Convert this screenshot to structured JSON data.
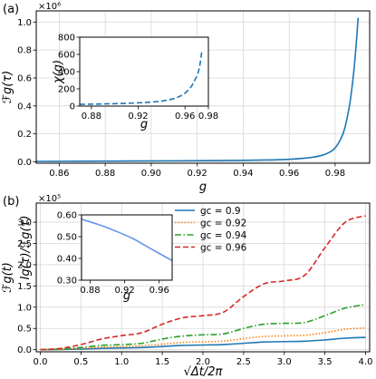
{
  "chart_data": [
    {
      "type": "line",
      "panel_label": "(a)",
      "xlabel": "g",
      "ylabel": "ℱg(τ)",
      "xlim": [
        0.85,
        0.995
      ],
      "ylim": [
        -10000,
        1080000
      ],
      "y_multiplier": "×10⁶",
      "xticks": [
        0.86,
        0.88,
        0.9,
        0.92,
        0.94,
        0.96,
        0.98
      ],
      "xtick_labels": [
        "0.86",
        "0.88",
        "0.90",
        "0.92",
        "0.94",
        "0.96",
        "0.98"
      ],
      "yticks": [
        0,
        200000,
        400000,
        600000,
        800000,
        1000000
      ],
      "ytick_labels": [
        "0.0",
        "0.2",
        "0.4",
        "0.6",
        "0.8",
        "1.0"
      ],
      "grid": true,
      "series": [
        {
          "color": "#1f77b4",
          "style": "solid",
          "x": [
            0.85,
            0.88,
            0.91,
            0.93,
            0.95,
            0.96,
            0.97,
            0.975,
            0.978,
            0.98,
            0.982,
            0.984,
            0.986,
            0.987,
            0.988,
            0.989,
            0.99
          ],
          "y": [
            3000,
            5000,
            7000,
            9000,
            13000,
            18000,
            32000,
            50000,
            72000,
            100000,
            150000,
            230000,
            380000,
            490000,
            630000,
            810000,
            1030000
          ]
        }
      ]
    },
    {
      "type": "line",
      "inset_of": "(a)",
      "xlabel": "g",
      "ylabel": "χ(g)",
      "xlim": [
        0.87,
        0.98
      ],
      "ylim": [
        0,
        800
      ],
      "xticks": [
        0.88,
        0.92,
        0.96,
        0.98
      ],
      "xtick_labels": [
        "0.88",
        "0.92",
        "0.96",
        "0.98"
      ],
      "yticks": [
        0,
        200,
        400,
        600,
        800
      ],
      "ytick_labels": [
        "0",
        "200",
        "400",
        "600",
        "800"
      ],
      "grid": false,
      "series": [
        {
          "color": "#1f77b4",
          "style": "dashed",
          "x": [
            0.87,
            0.89,
            0.91,
            0.93,
            0.94,
            0.95,
            0.955,
            0.96,
            0.965,
            0.968,
            0.971,
            0.973,
            0.9745
          ],
          "y": [
            20,
            25,
            32,
            45,
            58,
            85,
            110,
            150,
            220,
            290,
            380,
            500,
            650
          ]
        }
      ]
    },
    {
      "type": "line",
      "panel_label": "(b)",
      "xlabel": "√Δt/2π",
      "ylabel": "ℱg(t)",
      "xlim": [
        -0.05,
        4.05
      ],
      "ylim": [
        -5000,
        345000
      ],
      "y_multiplier": "×10⁵",
      "xticks": [
        0.0,
        0.5,
        1.0,
        1.5,
        2.0,
        2.5,
        3.0,
        3.5,
        4.0
      ],
      "xtick_labels": [
        "0.0",
        "0.5",
        "1.0",
        "1.5",
        "2.0",
        "2.5",
        "3.0",
        "3.5",
        "4.0"
      ],
      "yticks": [
        0,
        50000,
        100000,
        150000,
        200000,
        250000,
        300000
      ],
      "ytick_labels": [
        "0.0",
        "0.5",
        "1.0",
        "1.5",
        "2.0",
        "2.5",
        "3.0"
      ],
      "grid": true,
      "legend_position": "top-right",
      "series": [
        {
          "name": "g_c = 0.9",
          "legend_label": "gc = 0.9",
          "color": "#1f77b4",
          "style": "solid",
          "x": [
            0,
            0.25,
            0.5,
            0.75,
            1.0,
            1.25,
            1.5,
            1.75,
            2.0,
            2.25,
            2.5,
            2.75,
            3.0,
            3.25,
            3.5,
            3.75,
            4.0
          ],
          "y": [
            0,
            500,
            1500,
            3000,
            4000,
            5000,
            7500,
            10000,
            11000,
            12000,
            15000,
            18000,
            19000,
            20000,
            23000,
            27000,
            29000
          ]
        },
        {
          "name": "g_c = 0.92",
          "legend_label": "gc = 0.92",
          "color": "#ff7f0e",
          "style": "dotted",
          "x": [
            0,
            0.25,
            0.5,
            0.75,
            1.0,
            1.25,
            1.5,
            1.75,
            2.0,
            2.25,
            2.5,
            2.75,
            3.0,
            3.25,
            3.5,
            3.75,
            4.0
          ],
          "y": [
            0,
            800,
            3000,
            6000,
            7000,
            9000,
            13000,
            17000,
            18500,
            20000,
            26000,
            31000,
            32500,
            34000,
            40000,
            48000,
            51000
          ]
        },
        {
          "name": "g_c = 0.94",
          "legend_label": "gc = 0.94",
          "color": "#2ca02c",
          "style": "dashdot",
          "x": [
            0,
            0.25,
            0.5,
            0.75,
            1.0,
            1.25,
            1.5,
            1.75,
            2.0,
            2.25,
            2.5,
            2.75,
            3.0,
            3.25,
            3.5,
            3.75,
            4.0
          ],
          "y": [
            0,
            1500,
            5000,
            10000,
            12000,
            15000,
            25000,
            32000,
            35000,
            37000,
            50000,
            60000,
            62000,
            64000,
            80000,
            98000,
            106000
          ]
        },
        {
          "name": "g_c = 0.96",
          "legend_label": "gc = 0.96",
          "color": "#d62728",
          "style": "dashed",
          "x": [
            0,
            0.25,
            0.5,
            0.75,
            1.0,
            1.25,
            1.5,
            1.75,
            2.0,
            2.25,
            2.5,
            2.75,
            3.0,
            3.25,
            3.5,
            3.75,
            4.0
          ],
          "y": [
            0,
            3000,
            12000,
            25000,
            33000,
            40000,
            60000,
            75000,
            80000,
            88000,
            125000,
            155000,
            162000,
            175000,
            240000,
            300000,
            315000
          ]
        }
      ]
    },
    {
      "type": "line",
      "inset_of": "(b)",
      "xlabel": "g",
      "ylabel": "Ig(τ)/ℱg(τ)",
      "xlim": [
        0.87,
        0.975
      ],
      "ylim": [
        0.3,
        0.6
      ],
      "xticks": [
        0.88,
        0.92,
        0.96
      ],
      "xtick_labels": [
        "0.88",
        "0.92",
        "0.96"
      ],
      "yticks": [
        0.3,
        0.4,
        0.5,
        0.6
      ],
      "ytick_labels": [
        "0.30",
        "0.40",
        "0.50",
        "0.60"
      ],
      "grid": false,
      "series": [
        {
          "color": "#6495ed",
          "style": "solid",
          "x": [
            0.87,
            0.89,
            0.91,
            0.93,
            0.95,
            0.975
          ],
          "y": [
            0.58,
            0.555,
            0.525,
            0.49,
            0.445,
            0.39
          ]
        }
      ]
    }
  ]
}
